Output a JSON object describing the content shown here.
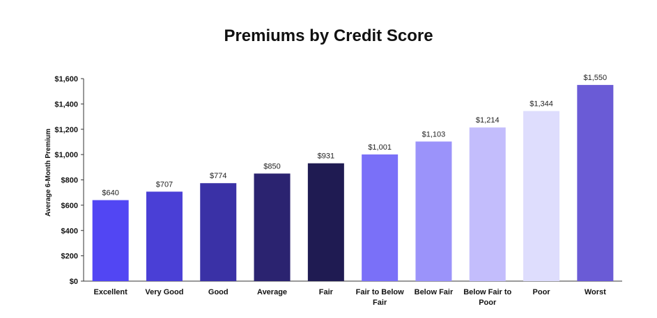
{
  "chart_data": {
    "type": "bar",
    "title": "Premiums by Credit Score",
    "xlabel": "",
    "ylabel": "Average 6-Month Premium",
    "ylim": [
      0,
      1600
    ],
    "yticks": [
      "$0",
      "$200",
      "$400",
      "$600",
      "$800",
      "$1,000",
      "$1,200",
      "$1,400",
      "$1,600"
    ],
    "ytick_values": [
      0,
      200,
      400,
      600,
      800,
      1000,
      1200,
      1400,
      1600
    ],
    "categories": [
      "Excellent",
      "Very Good",
      "Good",
      "Average",
      "Fair",
      "Fair to Below Fair",
      "Below Fair",
      "Below Fair to Poor",
      "Poor",
      "Worst"
    ],
    "values": [
      640,
      707,
      774,
      850,
      931,
      1001,
      1103,
      1214,
      1344,
      1550
    ],
    "value_labels": [
      "$640",
      "$707",
      "$774",
      "$850",
      "$931",
      "$1,001",
      "$1,103",
      "$1,214",
      "$1,344",
      "$1,550"
    ],
    "colors": [
      "#5246f3",
      "#4a3fd6",
      "#3a31a6",
      "#2b2370",
      "#1f1b52",
      "#7a70f8",
      "#9b93fa",
      "#c3bdfc",
      "#deddfd",
      "#6a5bd6"
    ],
    "grid": false,
    "legend": "none"
  }
}
